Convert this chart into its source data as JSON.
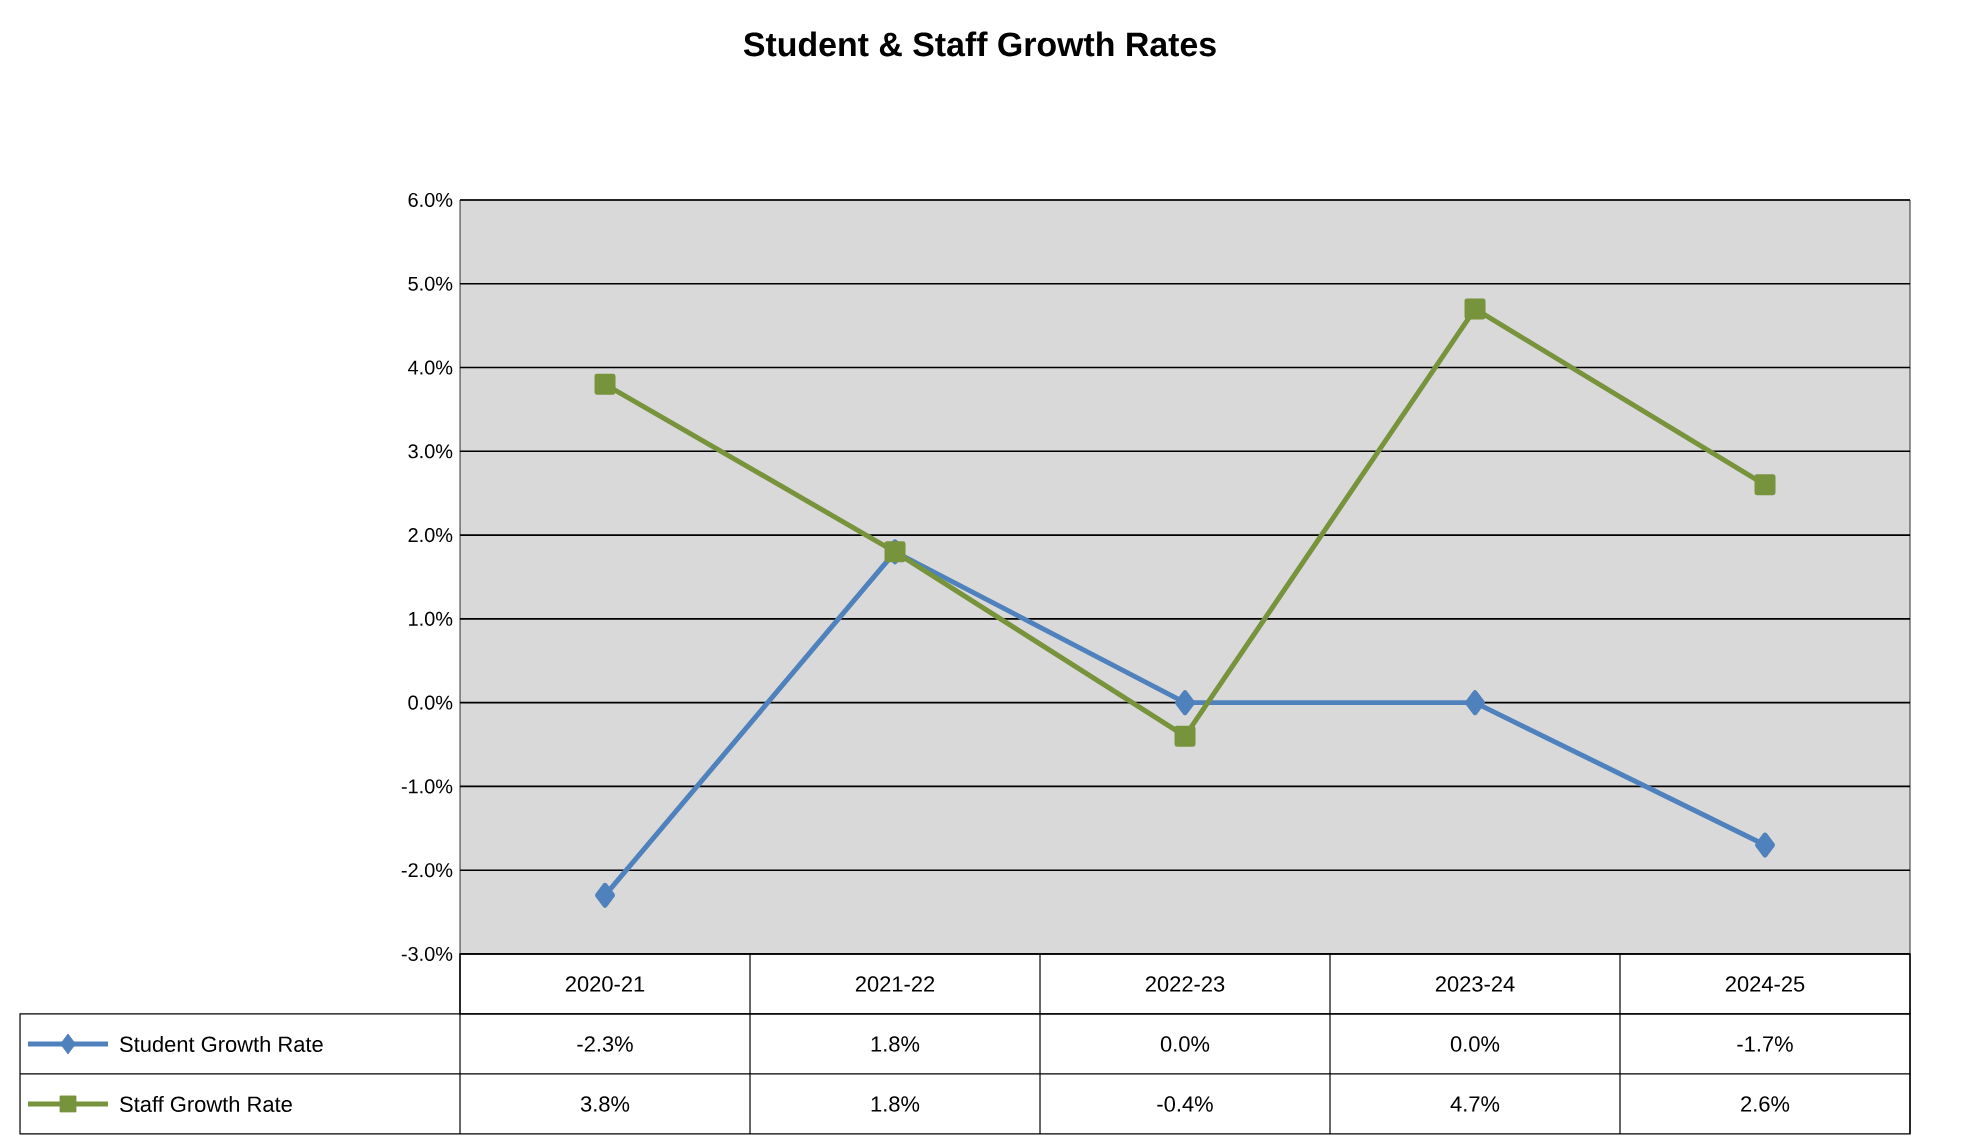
{
  "chart_data": {
    "type": "line",
    "title": "Student & Staff Growth Rates",
    "categories": [
      "2020-21",
      "2021-22",
      "2022-23",
      "2023-24",
      "2024-25"
    ],
    "series": [
      {
        "name": "Student Growth Rate",
        "color": "#4f81bd",
        "marker": "diamond",
        "values": [
          -2.3,
          1.8,
          0.0,
          0.0,
          -1.7
        ],
        "value_labels": [
          "-2.3%",
          "1.8%",
          "0.0%",
          "0.0%",
          "-1.7%"
        ]
      },
      {
        "name": "Staff Growth Rate",
        "color": "#77933c",
        "marker": "square",
        "values": [
          3.8,
          1.8,
          -0.4,
          4.7,
          2.6
        ],
        "value_labels": [
          "3.8%",
          "1.8%",
          "-0.4%",
          "4.7%",
          "2.6%"
        ]
      }
    ],
    "ylim": [
      -3,
      6
    ],
    "yticks": [
      {
        "value": -3,
        "label": "-3.0%"
      },
      {
        "value": -2,
        "label": "-2.0%"
      },
      {
        "value": -1,
        "label": "-1.0%"
      },
      {
        "value": 0,
        "label": "0.0%"
      },
      {
        "value": 1,
        "label": "1.0%"
      },
      {
        "value": 2,
        "label": "2.0%"
      },
      {
        "value": 3,
        "label": "3.0%"
      },
      {
        "value": 4,
        "label": "4.0%"
      },
      {
        "value": 5,
        "label": "5.0%"
      },
      {
        "value": 6,
        "label": "6.0%"
      }
    ],
    "grid": "y",
    "legend": "bottom",
    "line_style": "solid"
  }
}
